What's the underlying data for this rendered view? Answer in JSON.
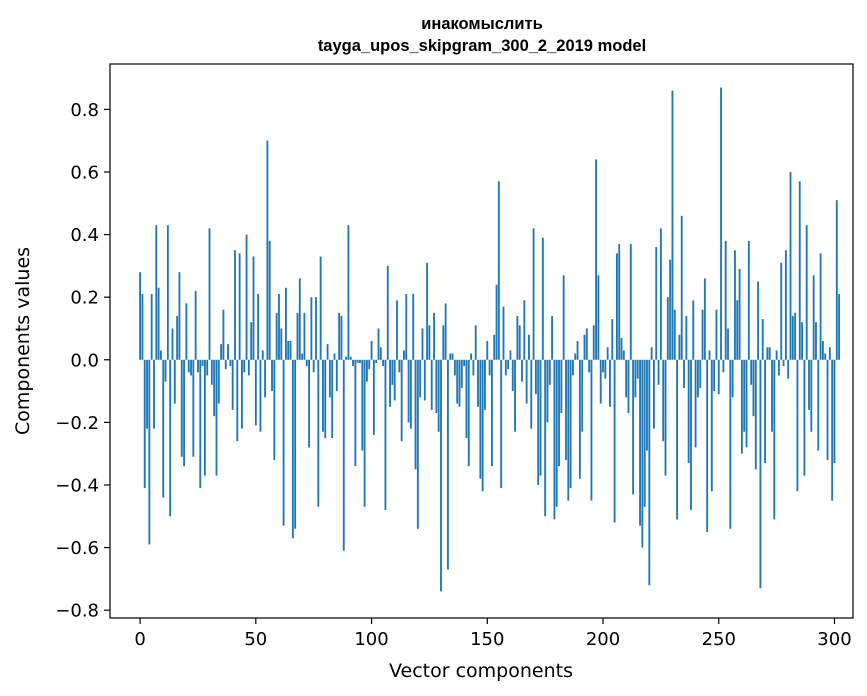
{
  "chart_data": {
    "type": "bar",
    "title": "инакомыслить",
    "subtitle": "tayga_upos_skipgram_300_2_2019 model",
    "xlabel": "Vector components",
    "ylabel": "Components values",
    "xlim": [
      -13,
      308
    ],
    "ylim": [
      -0.825,
      0.945
    ],
    "xticks": [
      0,
      50,
      100,
      150,
      200,
      250,
      300
    ],
    "yticks": [
      -0.8,
      -0.6,
      -0.4,
      -0.2,
      0.0,
      0.2,
      0.4,
      0.6,
      0.8
    ],
    "xtick_labels": [
      "0",
      "50",
      "100",
      "150",
      "200",
      "250",
      "300"
    ],
    "ytick_labels": [
      "−0.8",
      "−0.6",
      "−0.4",
      "−0.2",
      "0.0",
      "0.2",
      "0.4",
      "0.6",
      "0.8"
    ],
    "bar_color": "#1f77b4",
    "values": [
      0.28,
      0.21,
      -0.41,
      -0.22,
      -0.59,
      0.21,
      -0.22,
      0.43,
      0.23,
      0.03,
      -0.44,
      -0.07,
      0.43,
      -0.5,
      0.1,
      -0.14,
      0.14,
      0.28,
      -0.31,
      -0.34,
      0.18,
      -0.04,
      -0.05,
      -0.31,
      0.22,
      -0.04,
      -0.41,
      -0.02,
      -0.37,
      -0.05,
      0.42,
      -0.08,
      -0.18,
      -0.37,
      -0.14,
      0.05,
      0.16,
      -0.03,
      0.05,
      -0.02,
      -0.16,
      0.35,
      -0.26,
      0.34,
      -0.22,
      -0.04,
      0.4,
      -0.05,
      0.12,
      0.33,
      -0.21,
      0.21,
      -0.23,
      0.03,
      -0.12,
      0.7,
      0.38,
      -0.1,
      -0.32,
      0.15,
      0.21,
      0.1,
      -0.53,
      0.23,
      0.06,
      0.06,
      -0.57,
      -0.54,
      0.15,
      0.26,
      0.02,
      0.15,
      -0.02,
      -0.28,
      0.2,
      -0.04,
      0.2,
      -0.47,
      0.33,
      -0.23,
      -0.25,
      0.05,
      -0.12,
      -0.25,
      0.02,
      -0.1,
      0.15,
      0.14,
      -0.61,
      0.01,
      0.43,
      0.01,
      -0.02,
      -0.34,
      -0.01,
      -0.01,
      -0.29,
      -0.47,
      -0.07,
      -0.03,
      0.06,
      -0.24,
      -0.01,
      0.1,
      0.04,
      -0.02,
      -0.48,
      0.3,
      -0.15,
      -0.08,
      -0.13,
      0.19,
      -0.04,
      -0.26,
      0.03,
      0.21,
      -0.2,
      -0.22,
      0.21,
      -0.35,
      -0.54,
      -0.12,
      0.1,
      -0.13,
      0.31,
      0.11,
      -0.16,
      0.15,
      -0.17,
      -0.23,
      -0.74,
      0.11,
      0.18,
      -0.67,
      0.02,
      0.02,
      -0.05,
      -0.14,
      -0.15,
      -0.09,
      -0.02,
      -0.25,
      -0.34,
      0.02,
      -0.05,
      0.11,
      -0.15,
      -0.38,
      -0.42,
      -0.16,
      0.06,
      -0.05,
      -0.34,
      0.08,
      0.24,
      0.57,
      -0.41,
      0.17,
      -0.05,
      -0.03,
      0.03,
      -0.1,
      -0.23,
      0.14,
      0.11,
      -0.07,
      0.19,
      -0.14,
      0.08,
      -0.22,
      0.42,
      -0.11,
      -0.4,
      -0.37,
      0.39,
      -0.5,
      -0.2,
      -0.08,
      0.14,
      -0.51,
      -0.47,
      -0.34,
      -0.17,
      0.27,
      -0.32,
      -0.45,
      -0.41,
      -0.05,
      0.02,
      0.06,
      -0.38,
      -0.23,
      0.08,
      0.1,
      -0.04,
      -0.45,
      0.11,
      0.64,
      0.27,
      -0.14,
      -0.04,
      -0.06,
      0.04,
      -0.15,
      0.13,
      -0.52,
      0.34,
      0.37,
      0.07,
      0.03,
      -0.12,
      -0.17,
      0.37,
      -0.43,
      -0.12,
      -0.06,
      -0.53,
      -0.6,
      -0.47,
      -0.29,
      -0.72,
      0.04,
      -0.22,
      0.36,
      -0.08,
      0.42,
      -0.26,
      -0.37,
      0.2,
      0.32,
      0.86,
      0.16,
      -0.51,
      0.08,
      0.46,
      -0.09,
      0.14,
      -0.33,
      -0.48,
      0.19,
      -0.28,
      -0.12,
      -0.09,
      0.16,
      0.26,
      -0.55,
      0.03,
      -0.42,
      -0.1,
      0.16,
      -0.11,
      0.87,
      -0.04,
      0.38,
      0.1,
      -0.54,
      -0.12,
      0.35,
      0.19,
      0.29,
      -0.3,
      -0.23,
      -0.28,
      0.38,
      -0.08,
      -0.18,
      -0.35,
      0.25,
      -0.73,
      0.13,
      -0.33,
      0.04,
      0.04,
      -0.23,
      -0.51,
      0.03,
      -0.05,
      0.31,
      -0.02,
      0.35,
      -0.06,
      0.6,
      0.14,
      0.15,
      -0.42,
      0.57,
      0.12,
      -0.37,
      0.43,
      -0.16,
      -0.23,
      0.27,
      0.12,
      -0.29,
      0.34,
      0.06,
      0.02,
      -0.32,
      0.04,
      -0.45,
      -0.33,
      0.51,
      0.21
    ]
  }
}
